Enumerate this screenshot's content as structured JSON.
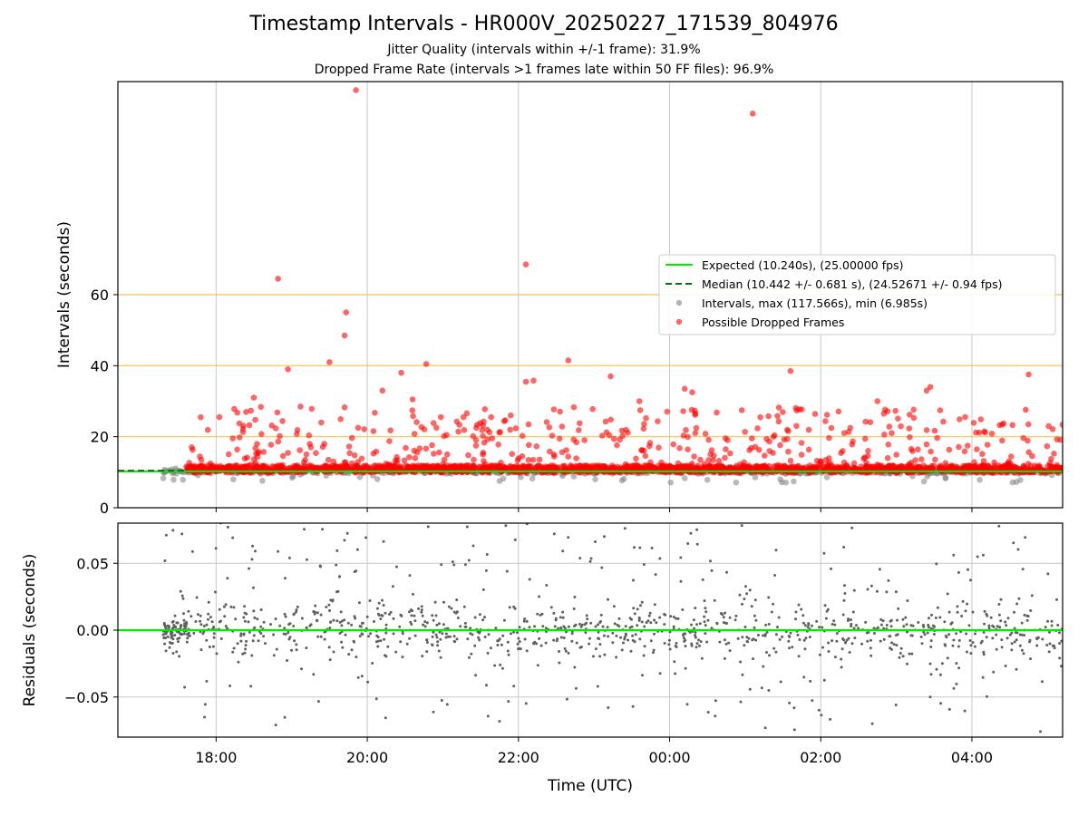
{
  "figure": {
    "title": "Timestamp Intervals - HR000V_20250227_171539_804976",
    "subtitle_1": "Jitter Quality (intervals within +/-1 frame): 31.9%",
    "subtitle_2": "Dropped Frame Rate (intervals >1 frames late within 50 FF files): 96.9%"
  },
  "colors": {
    "expected_line": "#00ee00",
    "median_line": "#007700",
    "intervals": "#808080",
    "dropped": "#ff0000",
    "threshold_lines": "#ffc04d",
    "grid": "#c8c8c8",
    "residuals": "#606060"
  },
  "chart_data": [
    {
      "type": "scatter",
      "ylabel": "Intervals (seconds)",
      "x_range_hours": [
        16.7,
        29.2
      ],
      "ylim": [
        0,
        120
      ],
      "yticks": [
        0,
        20,
        40,
        60
      ],
      "x_grid_hours": [
        18,
        20,
        22,
        24,
        26,
        28
      ],
      "grid": true,
      "horizontal_lines": [
        20,
        40,
        60
      ],
      "legend_position": "right",
      "series": [
        {
          "name": "Expected (10.240s), (25.00000 fps)",
          "kind": "line",
          "y": 10.24
        },
        {
          "name": "Median (10.442 +/- 0.681 s), (24.52671 +/- 0.94 fps)",
          "kind": "dashed-line",
          "y": 10.442,
          "x_end_hours": 17.6
        },
        {
          "name": "Intervals, max (117.566s), min (6.985s)",
          "kind": "scatter",
          "baseline": 10.24
        },
        {
          "name": "Possible Dropped Frames",
          "kind": "scatter"
        }
      ],
      "dropped_outliers": [
        {
          "x_hours": 19.85,
          "y": 117.6
        },
        {
          "x_hours": 25.1,
          "y": 111.0
        },
        {
          "x_hours": 22.1,
          "y": 68.5
        },
        {
          "x_hours": 18.82,
          "y": 64.5
        },
        {
          "x_hours": 19.72,
          "y": 55.0
        },
        {
          "x_hours": 19.7,
          "y": 48.5
        },
        {
          "x_hours": 19.5,
          "y": 41.0
        },
        {
          "x_hours": 22.66,
          "y": 41.5
        },
        {
          "x_hours": 20.78,
          "y": 40.5
        },
        {
          "x_hours": 18.95,
          "y": 39.0
        },
        {
          "x_hours": 20.45,
          "y": 38.0
        },
        {
          "x_hours": 25.6,
          "y": 38.5
        },
        {
          "x_hours": 28.75,
          "y": 37.5
        },
        {
          "x_hours": 23.22,
          "y": 37.0
        },
        {
          "x_hours": 22.2,
          "y": 35.8
        },
        {
          "x_hours": 22.1,
          "y": 35.5
        },
        {
          "x_hours": 27.45,
          "y": 34.0
        },
        {
          "x_hours": 24.2,
          "y": 33.5
        },
        {
          "x_hours": 20.2,
          "y": 33.0
        },
        {
          "x_hours": 24.3,
          "y": 32.5
        },
        {
          "x_hours": 27.4,
          "y": 33.0
        },
        {
          "x_hours": 18.5,
          "y": 31.0
        },
        {
          "x_hours": 20.6,
          "y": 30.5
        },
        {
          "x_hours": 26.75,
          "y": 30.0
        },
        {
          "x_hours": 23.6,
          "y": 30.0
        }
      ],
      "dropped_band": {
        "x_hours": [
          17.6,
          29.2
        ],
        "y_range": [
          10.0,
          30.0
        ]
      },
      "interval_band": {
        "x_hours": [
          17.3,
          29.2
        ],
        "y_range": [
          7.0,
          11.5
        ]
      }
    },
    {
      "type": "scatter",
      "xlabel": "Time (UTC)",
      "ylabel": "Residuals (seconds)",
      "x_range_hours": [
        16.7,
        29.2
      ],
      "ylim": [
        -0.08,
        0.08
      ],
      "yticks": [
        0.05,
        0.0,
        -0.05
      ],
      "ytick_labels": [
        "0.05",
        "0.00",
        "−0.05"
      ],
      "xticks_hours": [
        18,
        20,
        22,
        24,
        26,
        28
      ],
      "xtick_labels": [
        "18:00",
        "20:00",
        "22:00",
        "00:00",
        "02:00",
        "04:00"
      ],
      "grid": true,
      "series": [
        {
          "kind": "line",
          "y": 0.0
        },
        {
          "kind": "scatter",
          "x_hours": [
            17.3,
            29.2
          ],
          "y_range": [
            -0.08,
            0.08
          ]
        }
      ]
    }
  ]
}
